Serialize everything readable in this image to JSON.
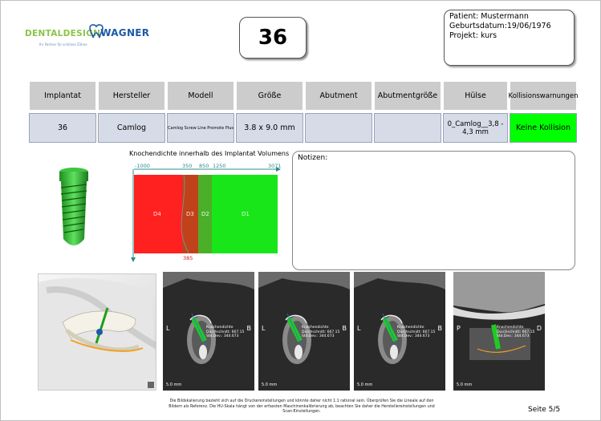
{
  "logo": {
    "brand_part1": "DENTALDESIGN",
    "brand_part2": "WAGNER",
    "tagline": "Ihr Partner für schönes Zähne",
    "accent_green": "#8bc34a",
    "accent_blue": "#1e5aa8"
  },
  "implant_number": "36",
  "patient": {
    "line1": "Patient: Mustermann",
    "line2": "Geburtsdatum:19/06/1976",
    "line3": "Projekt: kurs"
  },
  "table": {
    "headers": [
      "Implantat",
      "Hersteller",
      "Modell",
      "Größe",
      "Abutment",
      "Abutmentgröße",
      "Hülse",
      "Kollisionswarnungen"
    ],
    "row": [
      "36",
      "Camlog",
      "Camlog Screw Line Promote Plus",
      "3.8 x 9.0 mm",
      "",
      "",
      "0_Camlog__3,8 - 4,3 mm",
      "Keine Kollision"
    ],
    "collision_color": "#00ff00"
  },
  "bone_density": {
    "title": "Knochendichte innerhalb des Implantat Volumens",
    "top_ticks": [
      "-1000",
      "350",
      "850",
      "1250",
      "3071"
    ],
    "bottom_tick": "385",
    "zones": [
      {
        "label": "D4",
        "color": "#ff2020"
      },
      {
        "label": "D3",
        "color": "#c0421a"
      },
      {
        "label": "D2",
        "color": "#4caf2a"
      },
      {
        "label": "D1",
        "color": "#19e619"
      }
    ]
  },
  "notes": {
    "label": "Notizen:"
  },
  "ct_views": [
    {
      "left_label": "L",
      "right_label": "B",
      "scale": "5.0 mm",
      "readout": [
        "Knochendichte",
        "Durchschnitt: 667.15",
        "Std.Dev.: 344.673"
      ]
    },
    {
      "left_label": "L",
      "right_label": "B",
      "scale": "5.0 mm",
      "readout": [
        "Knochendichte",
        "Durchschnitt: 667.15",
        "Std.Dev.: 344.673"
      ]
    },
    {
      "left_label": "L",
      "right_label": "B",
      "scale": "5.0 mm",
      "readout": [
        "Knochendichte",
        "Durchschnitt: 667.15",
        "Std.Dev.: 344.673"
      ]
    },
    {
      "left_label": "P",
      "right_label": "D",
      "scale": "5.0 mm",
      "readout": [
        "Knochendichte",
        "Durchschnitt: 667.15",
        "Std.Dev.: 344.673"
      ]
    }
  ],
  "footer": {
    "note": "Die Bildskalierung bezieht sich auf die Druckereinstellungen und könnte daher nicht 1:1 rational sein. Überprüfen Sie die Lineale auf den Bildern als Referenz. Die HU-Skala hängt von der erfassten Maschinenkalibrierung ab, beachten Sie daher die Herstellereinstellungen und Scan-Einstellungen.",
    "page": "Seite 5/5"
  }
}
